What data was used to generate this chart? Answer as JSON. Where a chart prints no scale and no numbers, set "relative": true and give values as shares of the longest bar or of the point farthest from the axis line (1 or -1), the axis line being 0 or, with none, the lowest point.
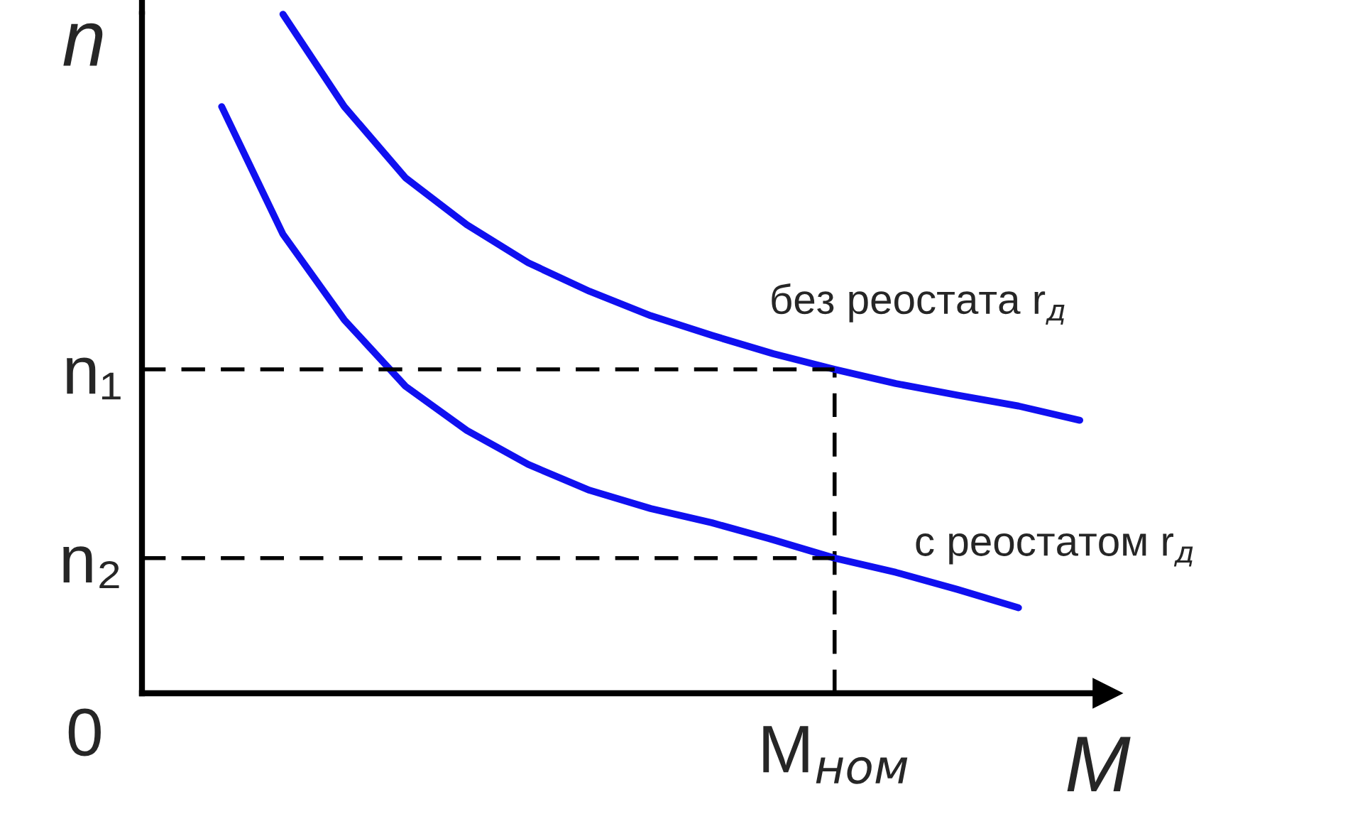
{
  "chart_data": {
    "type": "line",
    "relative": true,
    "xlabel": "M",
    "ylabel": "n",
    "grid": false,
    "categories": [
      null,
      null,
      null,
      null,
      null,
      null,
      null,
      null,
      null,
      null,
      null,
      null,
      null,
      null,
      null
    ],
    "series": [
      {
        "name": "без реостата r$_{д}$",
        "color": "#1010f0",
        "values": [
          null,
          1.0,
          0.864,
          0.759,
          0.69,
          0.634,
          0.592,
          0.556,
          0.527,
          0.5,
          0.477,
          0.456,
          0.439,
          0.423,
          0.402
        ]
      },
      {
        "name": "с реостатом r$_{д}$",
        "color": "#1010f0",
        "values": [
          0.864,
          0.676,
          0.55,
          0.452,
          0.387,
          0.337,
          0.299,
          0.272,
          0.251,
          0.226,
          0.199,
          0.178,
          0.153,
          0.126,
          null
        ]
      }
    ],
    "ref_lines": [
      {
        "axis": "y",
        "value": 0.477,
        "label": "n₁",
        "color": "#000000",
        "line_style": "dashed"
      },
      {
        "axis": "y",
        "value": 0.199,
        "label": "n₂",
        "color": "#000000",
        "line_style": "dashed"
      }
    ],
    "annotations": [
      "0",
      "M$_{ном}$"
    ]
  }
}
